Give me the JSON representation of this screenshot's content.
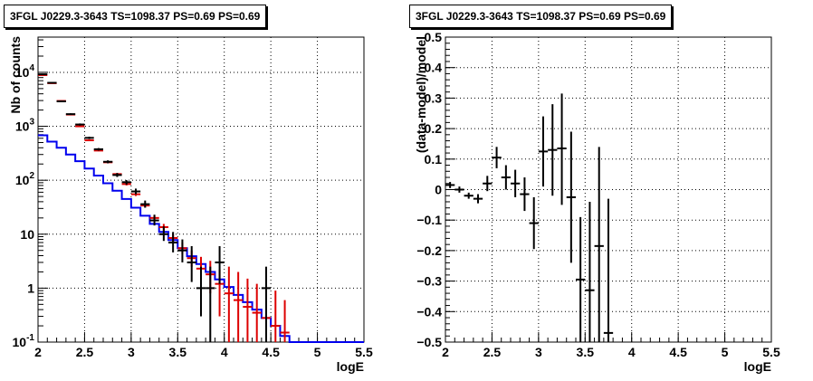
{
  "panels": [
    {
      "title": "3FGL J0229.3-3643 TS=1098.37 PS=0.69 PS=0.69",
      "xlabel": "logE",
      "ylabel": "Nb of counts"
    },
    {
      "title": "3FGL J0229.3-3643 TS=1098.37 PS=0.69 PS=0.69",
      "xlabel": "logE",
      "ylabel": "(data-model)/model"
    }
  ],
  "colors": {
    "data": "#000000",
    "model_total": "#dd0000",
    "model_source": "#0000ee",
    "grid": "#000000"
  },
  "chart_data": [
    {
      "type": "line",
      "title": "3FGL J0229.3-3643 TS=1098.37 PS=0.69 PS=0.69",
      "xlabel": "logE",
      "ylabel": "Nb of counts",
      "xlim": [
        2,
        5.5
      ],
      "ylim": [
        0.1,
        45000
      ],
      "yscale": "log",
      "grid": true,
      "x_ticks": [
        "2",
        "2.5",
        "3",
        "3.5",
        "4",
        "4.5",
        "5",
        "5.5"
      ],
      "y_ticks": [
        "10^-1",
        "1",
        "10",
        "10^2",
        "10^3",
        "10^4"
      ],
      "bin_width": 0.1,
      "series": [
        {
          "role": "data",
          "x": [
            2.05,
            2.15,
            2.25,
            2.35,
            2.45,
            2.55,
            2.65,
            2.75,
            2.85,
            2.95,
            3.05,
            3.15,
            3.25,
            3.35,
            3.45,
            3.55,
            3.65,
            3.75,
            3.85,
            3.95,
            4.45
          ],
          "y": [
            9200,
            6400,
            2900,
            1680,
            1080,
            610,
            375,
            220,
            125,
            92,
            62,
            36,
            18,
            10,
            7,
            5,
            3,
            1,
            1,
            3,
            1
          ],
          "ylo": [
            9000,
            6250,
            2800,
            1620,
            1030,
            580,
            355,
            206,
            115,
            83,
            55,
            31,
            14.5,
            7.5,
            4.6,
            3,
            1.3,
            0.3,
            0.1,
            1.2,
            0.1
          ],
          "yhi": [
            9400,
            6550,
            3000,
            1740,
            1130,
            640,
            395,
            234,
            136,
            101,
            70,
            42,
            23,
            14,
            11,
            8,
            6,
            2.5,
            2.5,
            6,
            2.5
          ]
        },
        {
          "role": "model_total",
          "x": [
            2.05,
            2.15,
            2.25,
            2.35,
            2.45,
            2.55,
            2.65,
            2.75,
            2.85,
            2.95,
            3.05,
            3.15,
            3.25,
            3.35,
            3.45,
            3.55,
            3.65,
            3.75,
            3.85,
            3.95,
            4.05,
            4.15,
            4.25,
            4.35,
            4.45,
            4.55,
            4.65
          ],
          "y": [
            8900,
            6300,
            2950,
            1650,
            1000,
            550,
            355,
            215,
            130,
            85,
            55,
            34,
            20,
            13.5,
            8.5,
            5.5,
            3.6,
            2.3,
            1.8,
            1.2,
            0.8,
            0.6,
            0.45,
            0.35,
            0.28,
            0.2,
            0.15
          ],
          "ylo": [
            8800,
            6200,
            2900,
            1620,
            980,
            535,
            345,
            207,
            124,
            80,
            51,
            31,
            17.5,
            11.5,
            7,
            4.3,
            2.5,
            1.2,
            0.8,
            0.3,
            0.1,
            0.1,
            0.1,
            0.1,
            0.1,
            0.1,
            0.1
          ],
          "yhi": [
            9000,
            6400,
            3000,
            1680,
            1020,
            565,
            365,
            223,
            136,
            90,
            59,
            37,
            22.5,
            15.5,
            10,
            7,
            5,
            3.8,
            3.2,
            2.2,
            2.5,
            2,
            1.5,
            1.2,
            1.1,
            0.9,
            0.6
          ]
        },
        {
          "role": "model_source",
          "kind": "step",
          "edges": [
            2.0,
            2.1,
            2.2,
            2.3,
            2.4,
            2.5,
            2.6,
            2.7,
            2.8,
            2.9,
            3.0,
            3.1,
            3.2,
            3.3,
            3.4,
            3.5,
            3.6,
            3.7,
            3.8,
            3.9,
            4.0,
            4.1,
            4.2,
            4.3,
            4.4,
            4.5,
            4.6,
            4.7,
            5.5
          ],
          "y": [
            680,
            520,
            400,
            300,
            225,
            165,
            122,
            88,
            64,
            45,
            31,
            22,
            15.5,
            11,
            7.8,
            5.5,
            3.9,
            2.8,
            2.0,
            1.45,
            1.05,
            0.75,
            0.55,
            0.4,
            0.28,
            0.2,
            0.13,
            0.1
          ]
        }
      ]
    },
    {
      "type": "scatter",
      "title": "3FGL J0229.3-3643 TS=1098.37 PS=0.69 PS=0.69",
      "xlabel": "logE",
      "ylabel": "(data-model)/model",
      "xlim": [
        2,
        5.5
      ],
      "ylim": [
        -0.5,
        0.5
      ],
      "grid": true,
      "x_ticks": [
        "2",
        "2.5",
        "3",
        "3.5",
        "4",
        "4.5",
        "5",
        "5.5"
      ],
      "y_ticks": [
        "-0.5",
        "-0.4",
        "-0.3",
        "-0.2",
        "-0.1",
        "0",
        "0.1",
        "0.2",
        "0.3",
        "0.4",
        "0.5"
      ],
      "bin_width": 0.1,
      "points": {
        "x": [
          2.05,
          2.15,
          2.25,
          2.35,
          2.45,
          2.55,
          2.65,
          2.75,
          2.85,
          2.95,
          3.05,
          3.15,
          3.25,
          3.35,
          3.45,
          3.55,
          3.65,
          3.75
        ],
        "y": [
          0.015,
          0.0,
          -0.02,
          -0.03,
          0.02,
          0.105,
          0.04,
          0.02,
          -0.015,
          -0.11,
          0.125,
          0.13,
          0.135,
          -0.025,
          -0.295,
          -0.33,
          -0.185,
          -0.47
        ],
        "ylo": [
          0.005,
          -0.01,
          -0.03,
          -0.045,
          -0.005,
          0.07,
          0.0,
          -0.025,
          -0.07,
          -0.195,
          0.01,
          -0.02,
          -0.05,
          -0.24,
          -0.5,
          -0.5,
          -0.5,
          -0.5
        ],
        "yhi": [
          0.025,
          0.01,
          -0.01,
          -0.015,
          0.045,
          0.14,
          0.08,
          0.065,
          0.04,
          -0.025,
          0.24,
          0.28,
          0.315,
          0.19,
          -0.09,
          -0.04,
          0.14,
          -0.03
        ]
      }
    }
  ]
}
